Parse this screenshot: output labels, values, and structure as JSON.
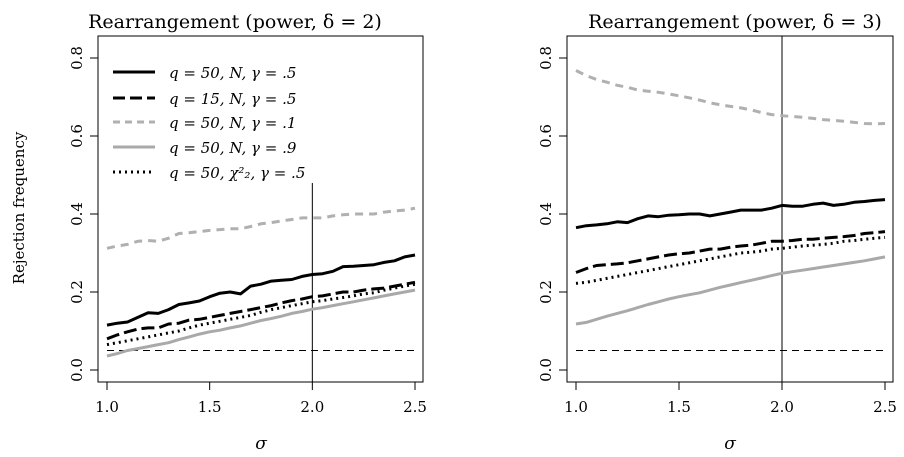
{
  "chart_data": [
    {
      "type": "line",
      "title": "Rearrangement (power, δ = 2)",
      "xlabel": "σ",
      "ylabel": "Rejection frequency",
      "xlim": [
        1.0,
        2.5
      ],
      "ylim": [
        0.0,
        0.8
      ],
      "xticks": [
        "1.0",
        "1.5",
        "2.0",
        "2.5"
      ],
      "yticks": [
        "0.0",
        "0.2",
        "0.4",
        "0.6",
        "0.8"
      ],
      "reference_hline": 0.05,
      "reference_vline": 2.0,
      "legend": "top-left",
      "x": [
        1.0,
        1.05,
        1.1,
        1.15,
        1.2,
        1.25,
        1.3,
        1.35,
        1.4,
        1.45,
        1.5,
        1.55,
        1.6,
        1.65,
        1.7,
        1.75,
        1.8,
        1.85,
        1.9,
        1.95,
        2.0,
        2.05,
        2.1,
        2.15,
        2.2,
        2.25,
        2.3,
        2.35,
        2.4,
        2.45,
        2.5
      ],
      "series": [
        {
          "name": "q = 50, N, γ = .5",
          "color": "#000000",
          "dash": "solid",
          "values": [
            0.115,
            0.12,
            0.123,
            0.135,
            0.147,
            0.145,
            0.155,
            0.168,
            0.172,
            0.177,
            0.188,
            0.197,
            0.2,
            0.195,
            0.215,
            0.22,
            0.228,
            0.23,
            0.232,
            0.24,
            0.245,
            0.247,
            0.253,
            0.265,
            0.266,
            0.268,
            0.27,
            0.276,
            0.28,
            0.29,
            0.295
          ]
        },
        {
          "name": "q = 15, N, γ = .5",
          "color": "#000000",
          "dash": "longdash",
          "values": [
            0.08,
            0.09,
            0.098,
            0.105,
            0.108,
            0.108,
            0.118,
            0.12,
            0.128,
            0.13,
            0.135,
            0.14,
            0.145,
            0.15,
            0.155,
            0.16,
            0.165,
            0.172,
            0.178,
            0.182,
            0.188,
            0.19,
            0.195,
            0.2,
            0.2,
            0.205,
            0.208,
            0.21,
            0.215,
            0.22,
            0.225
          ]
        },
        {
          "name": "q = 50, N, γ = .1",
          "color": "#b0b0b0",
          "dash": "dashed",
          "values": [
            0.312,
            0.318,
            0.322,
            0.33,
            0.332,
            0.33,
            0.338,
            0.35,
            0.352,
            0.355,
            0.358,
            0.36,
            0.362,
            0.362,
            0.368,
            0.375,
            0.378,
            0.382,
            0.386,
            0.39,
            0.39,
            0.39,
            0.395,
            0.398,
            0.4,
            0.4,
            0.4,
            0.405,
            0.408,
            0.41,
            0.415
          ]
        },
        {
          "name": "q = 50, N, γ = .9",
          "color": "#a9a9a9",
          "dash": "solid",
          "values": [
            0.036,
            0.042,
            0.05,
            0.055,
            0.06,
            0.065,
            0.07,
            0.078,
            0.085,
            0.092,
            0.098,
            0.102,
            0.108,
            0.113,
            0.12,
            0.127,
            0.132,
            0.138,
            0.145,
            0.15,
            0.156,
            0.16,
            0.165,
            0.17,
            0.175,
            0.18,
            0.185,
            0.19,
            0.195,
            0.2,
            0.205
          ]
        },
        {
          "name": "q = 50, χ²₂, γ = .5",
          "color": "#000000",
          "dash": "dotted",
          "values": [
            0.065,
            0.07,
            0.075,
            0.08,
            0.085,
            0.09,
            0.095,
            0.1,
            0.108,
            0.115,
            0.12,
            0.125,
            0.13,
            0.135,
            0.14,
            0.148,
            0.155,
            0.16,
            0.165,
            0.17,
            0.175,
            0.178,
            0.182,
            0.186,
            0.19,
            0.195,
            0.198,
            0.205,
            0.21,
            0.215,
            0.22
          ]
        }
      ]
    },
    {
      "type": "line",
      "title": "Rearrangement (power, δ = 3)",
      "xlabel": "σ",
      "ylabel": "",
      "xlim": [
        1.0,
        2.5
      ],
      "ylim": [
        0.0,
        0.8
      ],
      "xticks": [
        "1.0",
        "1.5",
        "2.0",
        "2.5"
      ],
      "yticks": [
        "0.0",
        "0.2",
        "0.4",
        "0.6",
        "0.8"
      ],
      "reference_hline": 0.05,
      "reference_vline": 2.0,
      "x": [
        1.0,
        1.05,
        1.1,
        1.15,
        1.2,
        1.25,
        1.3,
        1.35,
        1.4,
        1.45,
        1.5,
        1.55,
        1.6,
        1.65,
        1.7,
        1.75,
        1.8,
        1.85,
        1.9,
        1.95,
        2.0,
        2.05,
        2.1,
        2.15,
        2.2,
        2.25,
        2.3,
        2.35,
        2.4,
        2.45,
        2.5
      ],
      "series": [
        {
          "name": "q = 50, N, γ = .5",
          "color": "#000000",
          "dash": "solid",
          "values": [
            0.365,
            0.37,
            0.372,
            0.375,
            0.38,
            0.378,
            0.388,
            0.395,
            0.393,
            0.397,
            0.398,
            0.4,
            0.4,
            0.395,
            0.4,
            0.405,
            0.41,
            0.41,
            0.41,
            0.415,
            0.422,
            0.42,
            0.42,
            0.425,
            0.428,
            0.422,
            0.425,
            0.43,
            0.432,
            0.435,
            0.437
          ]
        },
        {
          "name": "q = 15, N, γ = .5",
          "color": "#000000",
          "dash": "longdash",
          "values": [
            0.25,
            0.26,
            0.268,
            0.27,
            0.272,
            0.275,
            0.28,
            0.285,
            0.29,
            0.295,
            0.298,
            0.3,
            0.305,
            0.31,
            0.31,
            0.315,
            0.318,
            0.32,
            0.325,
            0.33,
            0.33,
            0.332,
            0.335,
            0.335,
            0.338,
            0.34,
            0.342,
            0.345,
            0.35,
            0.352,
            0.355
          ]
        },
        {
          "name": "q = 50, N, γ = .1",
          "color": "#b0b0b0",
          "dash": "dashed",
          "values": [
            0.768,
            0.755,
            0.745,
            0.738,
            0.73,
            0.725,
            0.718,
            0.715,
            0.712,
            0.708,
            0.703,
            0.698,
            0.692,
            0.685,
            0.68,
            0.676,
            0.672,
            0.667,
            0.66,
            0.655,
            0.652,
            0.65,
            0.648,
            0.645,
            0.642,
            0.64,
            0.638,
            0.635,
            0.632,
            0.631,
            0.632
          ]
        },
        {
          "name": "q = 50, N, γ = .9",
          "color": "#a9a9a9",
          "dash": "solid",
          "values": [
            0.118,
            0.122,
            0.13,
            0.138,
            0.145,
            0.152,
            0.16,
            0.168,
            0.175,
            0.182,
            0.188,
            0.193,
            0.198,
            0.205,
            0.212,
            0.218,
            0.224,
            0.23,
            0.236,
            0.242,
            0.248,
            0.252,
            0.256,
            0.26,
            0.264,
            0.268,
            0.272,
            0.276,
            0.28,
            0.285,
            0.29
          ]
        },
        {
          "name": "q = 50, χ²₂, γ = .5",
          "color": "#000000",
          "dash": "dotted",
          "values": [
            0.222,
            0.225,
            0.23,
            0.235,
            0.24,
            0.245,
            0.25,
            0.255,
            0.26,
            0.265,
            0.27,
            0.275,
            0.28,
            0.285,
            0.29,
            0.295,
            0.3,
            0.302,
            0.305,
            0.31,
            0.312,
            0.315,
            0.318,
            0.32,
            0.322,
            0.325,
            0.33,
            0.332,
            0.335,
            0.338,
            0.34
          ]
        }
      ]
    }
  ]
}
